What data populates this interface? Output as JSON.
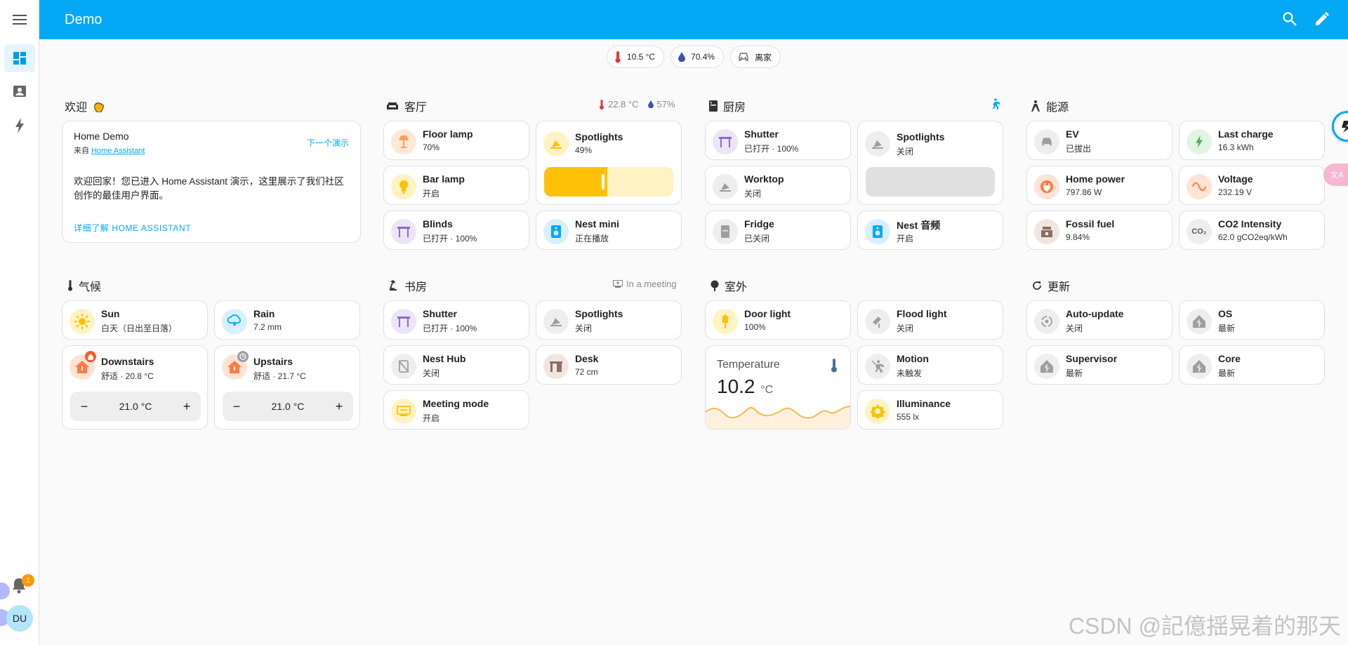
{
  "header": {
    "title": "Demo"
  },
  "chips": [
    {
      "value": "10.5 °C",
      "icon": "thermometer-icon"
    },
    {
      "value": "70.4%",
      "icon": "water-drop-icon"
    },
    {
      "value": "离家",
      "icon": "car-icon"
    }
  ],
  "welcome": {
    "title": "欢迎",
    "card_title": "Home Demo",
    "from_prefix": "来自",
    "from_link": "Home Assistant",
    "next_link": "下一个演示",
    "body": "欢迎回家！您已进入 Home Assistant 演示，这里展示了我们社区创作的最佳用户界面。",
    "learn_more": "详细了解 HOME ASSISTANT"
  },
  "living": {
    "title": "客厅",
    "temp": "22.8 °C",
    "humidity": "57%",
    "tiles": [
      {
        "name": "Floor lamp",
        "state": "70%"
      },
      {
        "name": "Bar lamp",
        "state": "开启"
      },
      {
        "name": "Blinds",
        "state": "已打开 · 100%"
      },
      {
        "name": "Spotlights",
        "state": "49%"
      },
      {
        "name": "Nest mini",
        "state": "正在播放"
      }
    ],
    "spotlight_level": 0.49
  },
  "kitchen": {
    "title": "厨房",
    "tiles": [
      {
        "name": "Shutter",
        "state": "已打开 · 100%"
      },
      {
        "name": "Worktop",
        "state": "关闭"
      },
      {
        "name": "Fridge",
        "state": "已关闭"
      },
      {
        "name": "Spotlights",
        "state": "关闭"
      },
      {
        "name": "Nest 音频",
        "state": "开启"
      }
    ]
  },
  "energy": {
    "title": "能源",
    "tiles": [
      {
        "name": "EV",
        "state": "已拔出"
      },
      {
        "name": "Home power",
        "state": "797.86 W"
      },
      {
        "name": "Fossil fuel",
        "state": "9.84%"
      },
      {
        "name": "Last charge",
        "state": "16.3 kWh"
      },
      {
        "name": "Voltage",
        "state": "232.19 V"
      },
      {
        "name": "CO2 Intensity",
        "state": "62.0 gCO2eq/kWh"
      }
    ]
  },
  "climate": {
    "title": "气候",
    "tiles": [
      {
        "name": "Sun",
        "state": "白天（日出至日落）"
      },
      {
        "name": "Rain",
        "state": "7.2 mm"
      }
    ],
    "thermostats": [
      {
        "name": "Downstairs",
        "state": "舒适 · 20.8 °C",
        "target": "21.0 °C"
      },
      {
        "name": "Upstairs",
        "state": "舒适 · 21.7 °C",
        "target": "21.0 °C"
      }
    ]
  },
  "study": {
    "title": "书房",
    "badge": "In a meeting",
    "tiles": [
      {
        "name": "Shutter",
        "state": "已打开 · 100%"
      },
      {
        "name": "Nest Hub",
        "state": "关闭"
      },
      {
        "name": "Meeting mode",
        "state": "开启"
      },
      {
        "name": "Spotlights",
        "state": "关闭"
      },
      {
        "name": "Desk",
        "state": "72 cm"
      }
    ]
  },
  "outdoor": {
    "title": "室外",
    "tiles": [
      {
        "name": "Door light",
        "state": "100%"
      },
      {
        "name": "Flood light",
        "state": "关闭"
      },
      {
        "name": "Motion",
        "state": "未触发"
      },
      {
        "name": "Illuminance",
        "state": "555 lx"
      }
    ],
    "temperature": {
      "label": "Temperature",
      "value": "10.2",
      "unit": "°C"
    }
  },
  "updates": {
    "title": "更新",
    "tiles": [
      {
        "name": "Auto-update",
        "state": "关闭"
      },
      {
        "name": "Supervisor",
        "state": "最新"
      },
      {
        "name": "OS",
        "state": "最新"
      },
      {
        "name": "Core",
        "state": "最新"
      }
    ]
  },
  "user": {
    "initials": "DU",
    "notifications": "1"
  },
  "watermark": "CSDN @記億揺晃着的那天",
  "colors": {
    "primary": "#03a9f4",
    "amber": "#ffc107",
    "purple": "#8e6ac8"
  }
}
